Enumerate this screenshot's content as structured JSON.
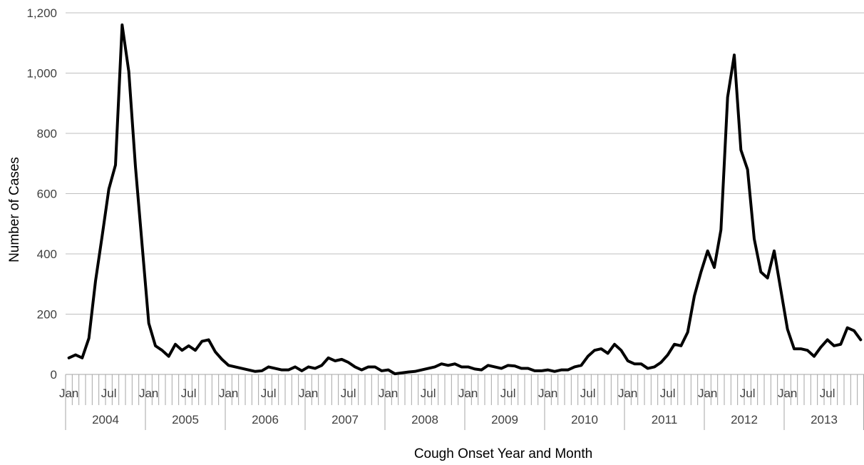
{
  "chart_data": {
    "type": "line",
    "title": "",
    "xlabel": "Cough Onset Year and Month",
    "ylabel": "Number of Cases",
    "ylim": [
      0,
      1200
    ],
    "y_ticks": [
      "0",
      "200",
      "400",
      "600",
      "800",
      "1,000",
      "1,200"
    ],
    "grid": "horizontal",
    "legend": "none",
    "line_color": "#000000",
    "grid_color": "#bfbfbf",
    "years": [
      "2004",
      "2005",
      "2006",
      "2007",
      "2008",
      "2009",
      "2010",
      "2011",
      "2012",
      "2013"
    ],
    "month_labels": [
      "Jan",
      "Jul"
    ],
    "series": [
      {
        "values": [
          55,
          65,
          55,
          120,
          310,
          460,
          615,
          695,
          1160,
          1005,
          690,
          430,
          170,
          95,
          80,
          60,
          100,
          80,
          95,
          80,
          110,
          115,
          75,
          50,
          30,
          25,
          20,
          15,
          10,
          12,
          25,
          20,
          15,
          15,
          25,
          12,
          25,
          20,
          30,
          55,
          45,
          50,
          40,
          25,
          15,
          25,
          25,
          12,
          15,
          2,
          5,
          8,
          10,
          15,
          20,
          25,
          35,
          30,
          35,
          25,
          25,
          18,
          15,
          30,
          25,
          20,
          30,
          28,
          20,
          20,
          12,
          12,
          15,
          10,
          15,
          15,
          25,
          30,
          60,
          80,
          85,
          70,
          100,
          80,
          45,
          35,
          35,
          20,
          25,
          40,
          65,
          100,
          95,
          140,
          260,
          340,
          410,
          355,
          480,
          920,
          1060,
          745,
          680,
          450,
          340,
          320,
          410,
          280,
          150,
          85,
          85,
          80,
          60,
          90,
          115,
          95,
          100,
          155,
          145,
          115
        ]
      }
    ]
  }
}
